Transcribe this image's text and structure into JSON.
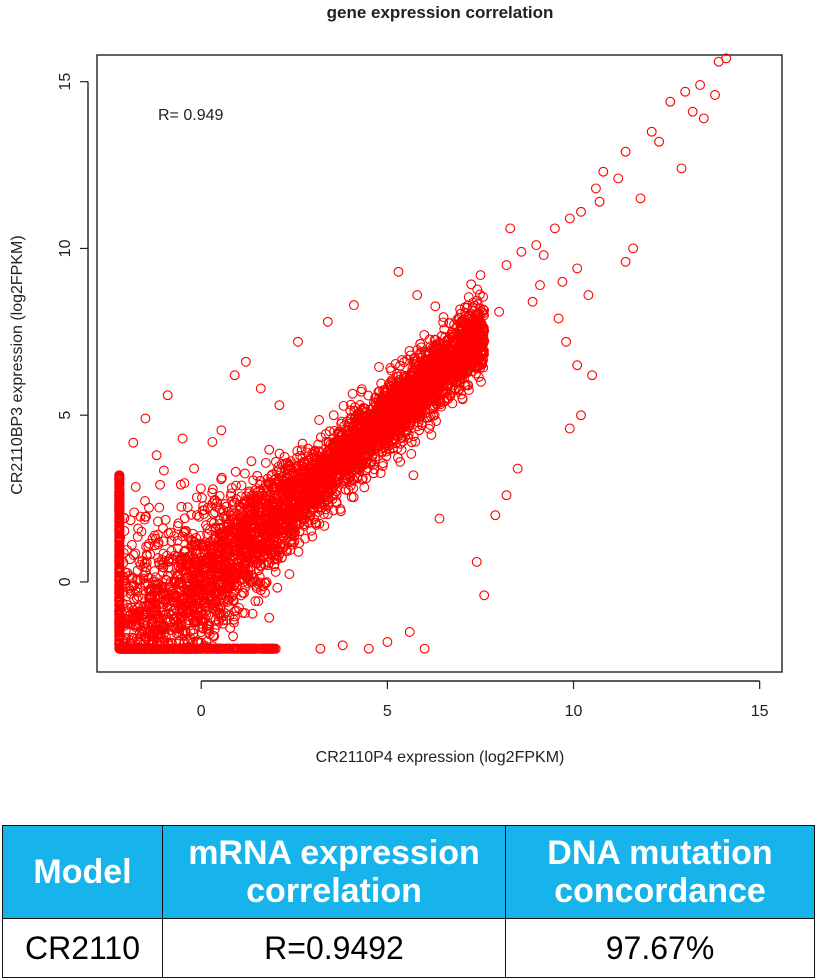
{
  "chart_data": {
    "type": "scatter",
    "title": "gene expression correlation",
    "xlabel": "CR2110P4  expression (log2FPKM)",
    "ylabel": "CR2110BP3  expression (log2FPKM)",
    "annotation": "R= 0.949",
    "xlim": [
      -2.8,
      15.6
    ],
    "ylim": [
      -2.7,
      15.8
    ],
    "xticks": [
      0,
      5,
      10,
      15
    ],
    "yticks": [
      0,
      5,
      10,
      15
    ],
    "marker": "open-circle",
    "color": "#ff0000",
    "points": [
      [
        13.9,
        15.6
      ],
      [
        14.1,
        15.7
      ],
      [
        13.4,
        14.9
      ],
      [
        12.6,
        14.4
      ],
      [
        13.0,
        14.7
      ],
      [
        13.2,
        14.1
      ],
      [
        13.5,
        13.9
      ],
      [
        13.8,
        14.6
      ],
      [
        12.1,
        13.5
      ],
      [
        11.4,
        12.9
      ],
      [
        10.8,
        12.3
      ],
      [
        12.3,
        13.2
      ],
      [
        11.2,
        12.1
      ],
      [
        12.9,
        12.4
      ],
      [
        10.6,
        11.8
      ],
      [
        11.8,
        11.5
      ],
      [
        10.2,
        11.1
      ],
      [
        11.6,
        10.0
      ],
      [
        9.5,
        10.6
      ],
      [
        9.9,
        10.9
      ],
      [
        10.7,
        11.4
      ],
      [
        9.0,
        10.1
      ],
      [
        10.1,
        9.4
      ],
      [
        9.2,
        9.8
      ],
      [
        8.6,
        9.9
      ],
      [
        9.7,
        9.0
      ],
      [
        10.4,
        8.6
      ],
      [
        8.2,
        9.5
      ],
      [
        8.9,
        8.4
      ],
      [
        9.6,
        7.9
      ],
      [
        8.3,
        10.6
      ],
      [
        7.5,
        9.2
      ],
      [
        8.0,
        8.1
      ],
      [
        9.1,
        8.9
      ],
      [
        9.9,
        4.6
      ],
      [
        10.2,
        5.0
      ],
      [
        11.4,
        9.6
      ],
      [
        10.1,
        6.5
      ],
      [
        10.5,
        6.2
      ],
      [
        9.8,
        7.2
      ],
      [
        8.5,
        3.4
      ],
      [
        7.6,
        -0.4
      ],
      [
        7.4,
        0.6
      ],
      [
        7.9,
        2.0
      ],
      [
        6.4,
        1.9
      ],
      [
        8.2,
        2.6
      ],
      [
        5.7,
        3.2
      ],
      [
        4.5,
        -2.0
      ],
      [
        3.2,
        -2.0
      ],
      [
        5.0,
        -1.8
      ],
      [
        6.0,
        -2.0
      ],
      [
        2.0,
        -2.0
      ],
      [
        3.8,
        -1.9
      ],
      [
        5.6,
        -1.5
      ],
      [
        -0.9,
        5.6
      ],
      [
        0.3,
        4.2
      ],
      [
        1.2,
        6.6
      ],
      [
        0.9,
        6.2
      ],
      [
        2.1,
        5.3
      ],
      [
        1.6,
        5.8
      ],
      [
        -0.5,
        4.3
      ],
      [
        -1.5,
        4.9
      ],
      [
        -1.2,
        3.8
      ],
      [
        2.6,
        7.2
      ],
      [
        3.4,
        7.8
      ],
      [
        4.1,
        8.3
      ],
      [
        5.3,
        9.3
      ],
      [
        5.8,
        8.6
      ]
    ]
  },
  "table": {
    "headers": [
      "Model",
      "mRNA expression correlation",
      "DNA mutation concordance"
    ],
    "rows": [
      [
        "CR2110",
        "R=0.9492",
        "97.67%"
      ]
    ]
  }
}
